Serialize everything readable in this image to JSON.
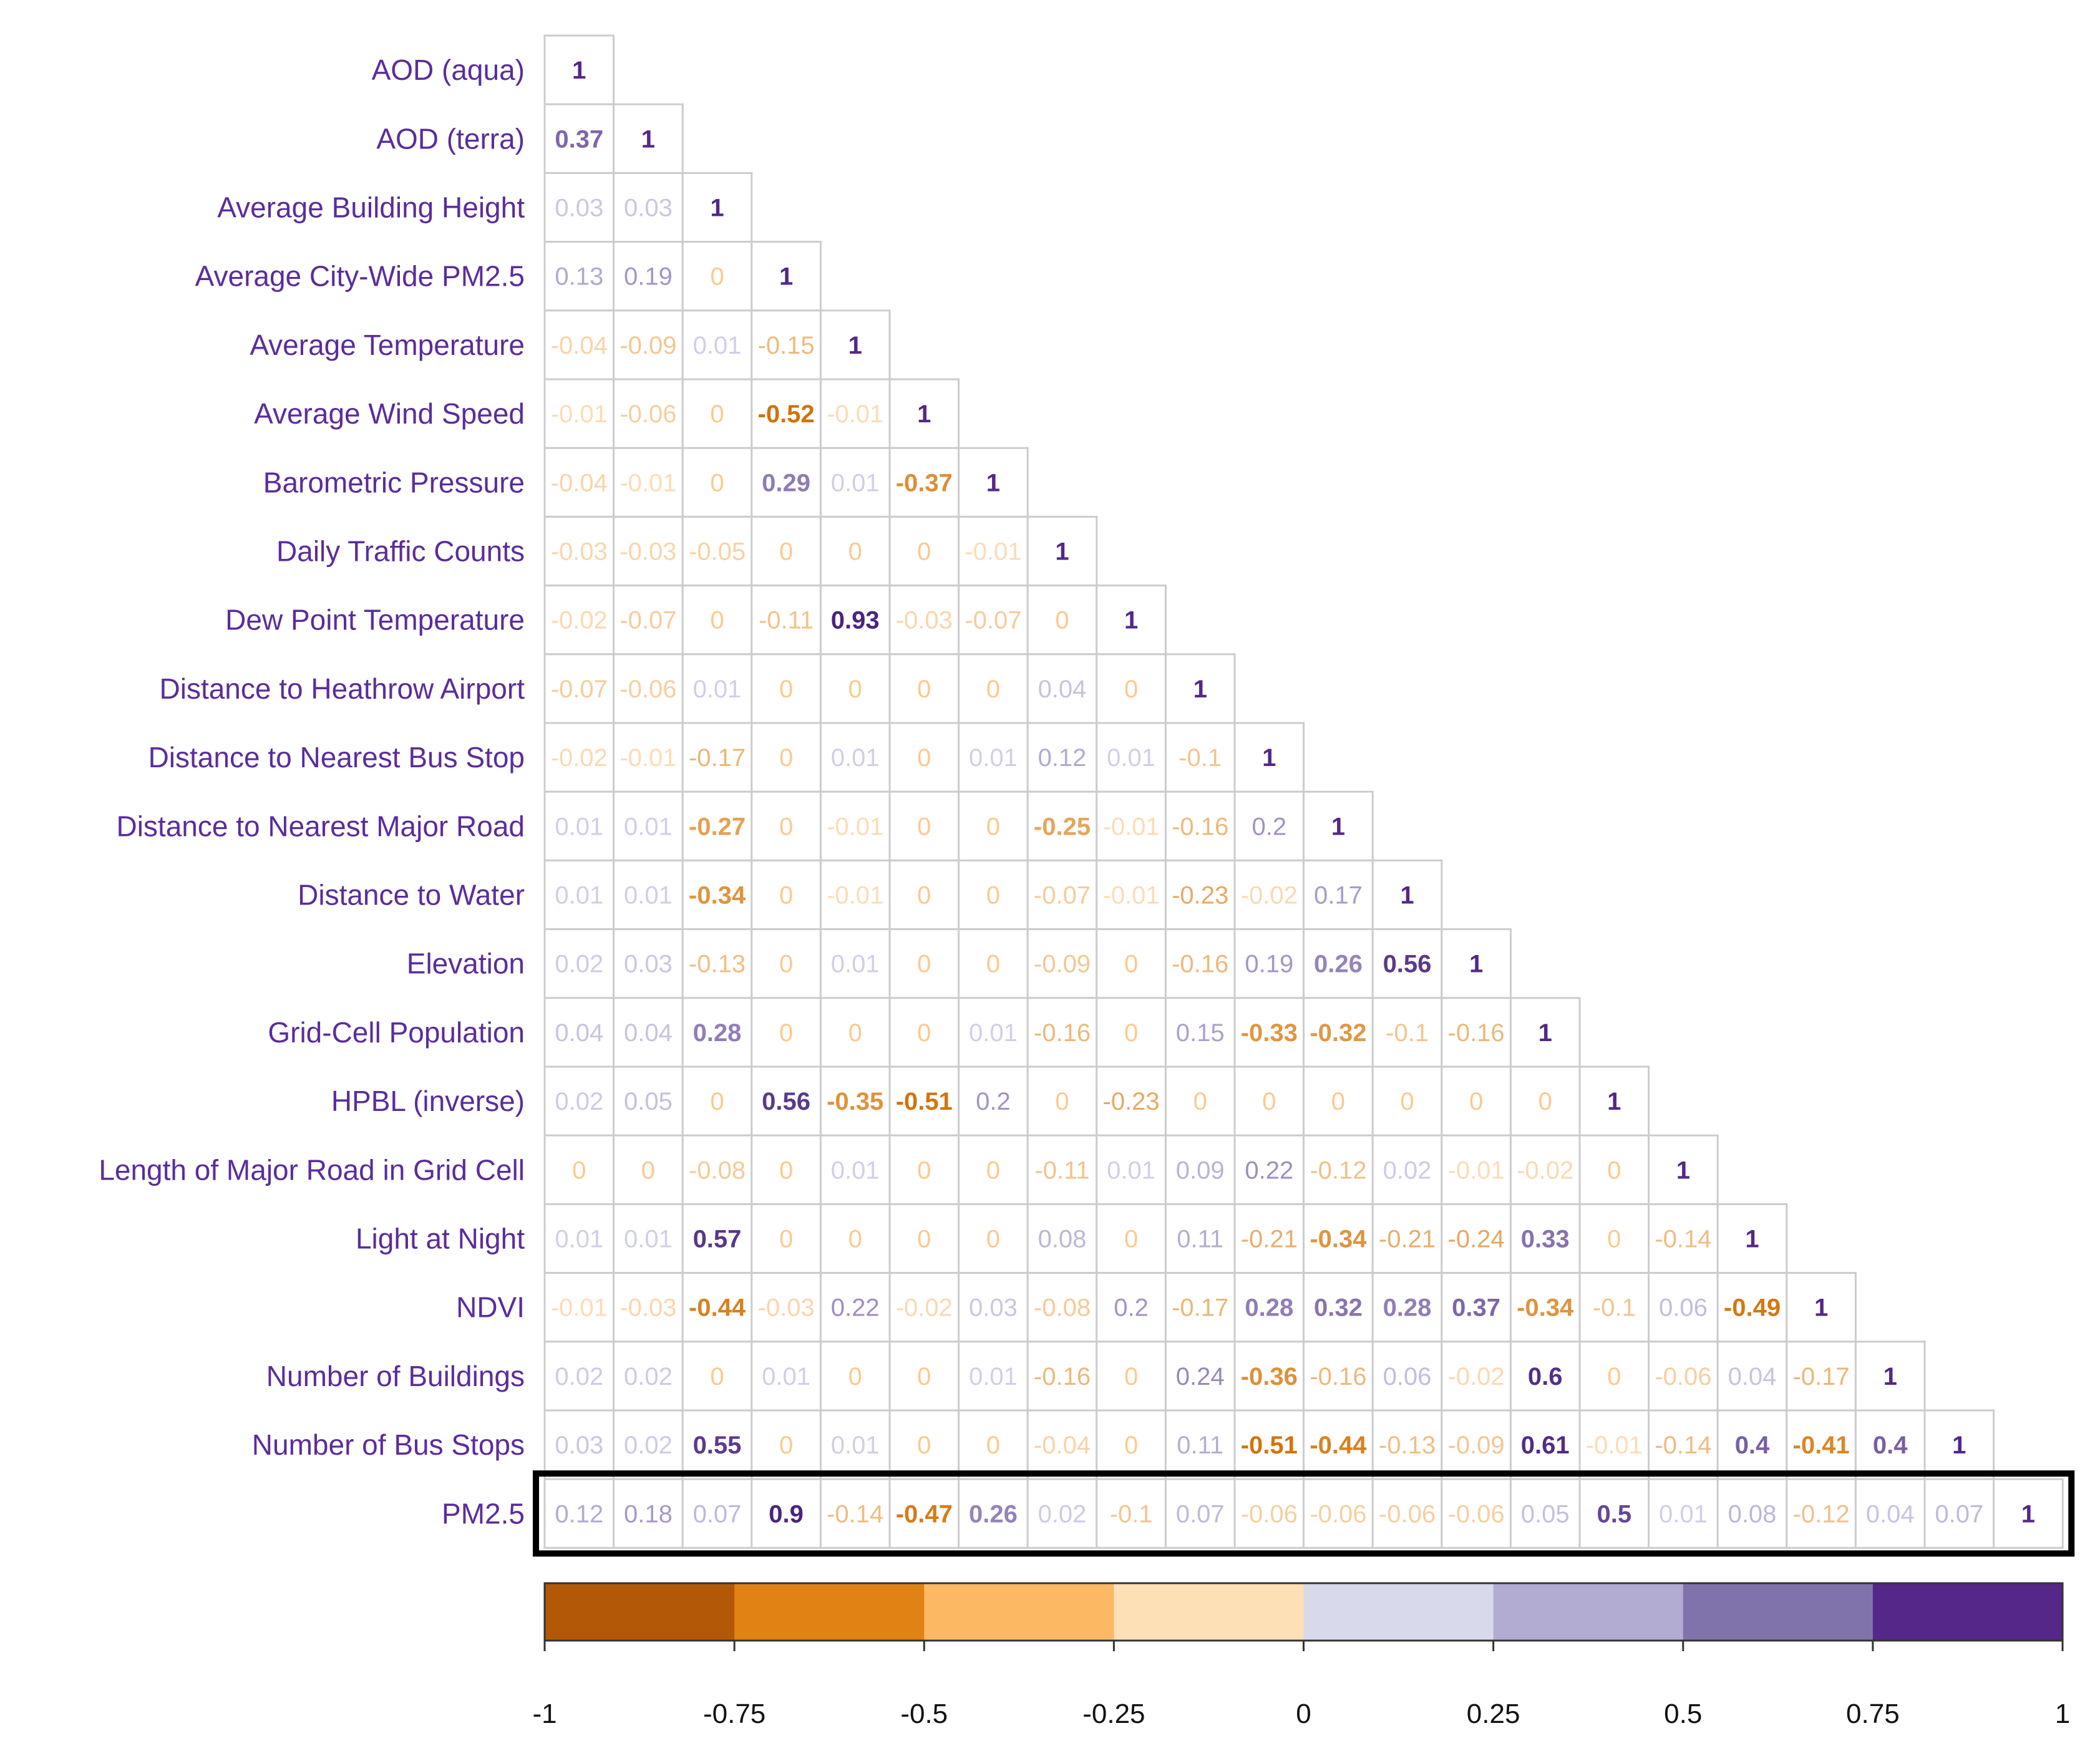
{
  "chart_data": {
    "type": "heatmap",
    "subtype": "lower-triangular correlation matrix",
    "variables": [
      "AOD (aqua)",
      "AOD (terra)",
      "Average Building Height",
      "Average City-Wide PM2.5",
      "Average Temperature",
      "Average Wind Speed",
      "Barometric Pressure",
      "Daily Traffic Counts",
      "Dew Point Temperature",
      "Distance to Heathrow Airport",
      "Distance to Nearest Bus Stop",
      "Distance to Nearest Major Road",
      "Distance to Water",
      "Elevation",
      "Grid-Cell Population",
      "HPBL (inverse)",
      "Length of Major Road in Grid Cell",
      "Light at Night",
      "NDVI",
      "Number of Buildings",
      "Number of Bus Stops",
      "PM2.5"
    ],
    "matrix": [
      [
        "1"
      ],
      [
        "0.37",
        "1"
      ],
      [
        "0.03",
        "0.03",
        "1"
      ],
      [
        "0.13",
        "0.19",
        "0",
        "1"
      ],
      [
        "-0.04",
        "-0.09",
        "0.01",
        "-0.15",
        "1"
      ],
      [
        "-0.01",
        "-0.06",
        "0",
        "-0.52",
        "-0.01",
        "1"
      ],
      [
        "-0.04",
        "-0.01",
        "0",
        "0.29",
        "0.01",
        "-0.37",
        "1"
      ],
      [
        "-0.03",
        "-0.03",
        "-0.05",
        "0",
        "0",
        "0",
        "-0.01",
        "1"
      ],
      [
        "-0.02",
        "-0.07",
        "0",
        "-0.11",
        "0.93",
        "-0.03",
        "-0.07",
        "0",
        "1"
      ],
      [
        "-0.07",
        "-0.06",
        "0.01",
        "0",
        "0",
        "0",
        "0",
        "0.04",
        "0",
        "1"
      ],
      [
        "-0.02",
        "-0.01",
        "-0.17",
        "0",
        "0.01",
        "0",
        "0.01",
        "0.12",
        "0.01",
        "-0.1",
        "1"
      ],
      [
        "0.01",
        "0.01",
        "-0.27",
        "0",
        "-0.01",
        "0",
        "0",
        "-0.25",
        "-0.01",
        "-0.16",
        "0.2",
        "1"
      ],
      [
        "0.01",
        "0.01",
        "-0.34",
        "0",
        "-0.01",
        "0",
        "0",
        "-0.07",
        "-0.01",
        "-0.23",
        "-0.02",
        "0.17",
        "1"
      ],
      [
        "0.02",
        "0.03",
        "-0.13",
        "0",
        "0.01",
        "0",
        "0",
        "-0.09",
        "0",
        "-0.16",
        "0.19",
        "0.26",
        "0.56",
        "1"
      ],
      [
        "0.04",
        "0.04",
        "0.28",
        "0",
        "0",
        "0",
        "0.01",
        "-0.16",
        "0",
        "0.15",
        "-0.33",
        "-0.32",
        "-0.1",
        "-0.16",
        "1"
      ],
      [
        "0.02",
        "0.05",
        "0",
        "0.56",
        "-0.35",
        "-0.51",
        "0.2",
        "0",
        "-0.23",
        "0",
        "0",
        "0",
        "0",
        "0",
        "0",
        "1"
      ],
      [
        "0",
        "0",
        "-0.08",
        "0",
        "0.01",
        "0",
        "0",
        "-0.11",
        "0.01",
        "0.09",
        "0.22",
        "-0.12",
        "0.02",
        "-0.01",
        "-0.02",
        "0",
        "1"
      ],
      [
        "0.01",
        "0.01",
        "0.57",
        "0",
        "0",
        "0",
        "0",
        "0.08",
        "0",
        "0.11",
        "-0.21",
        "-0.34",
        "-0.21",
        "-0.24",
        "0.33",
        "0",
        "-0.14",
        "1"
      ],
      [
        "-0.01",
        "-0.03",
        "-0.44",
        "-0.03",
        "0.22",
        "-0.02",
        "0.03",
        "-0.08",
        "0.2",
        "-0.17",
        "0.28",
        "0.32",
        "0.28",
        "0.37",
        "-0.34",
        "-0.1",
        "0.06",
        "-0.49",
        "1"
      ],
      [
        "0.02",
        "0.02",
        "0",
        "0.01",
        "0",
        "0",
        "0.01",
        "-0.16",
        "0",
        "0.24",
        "-0.36",
        "-0.16",
        "0.06",
        "-0.02",
        "0.6",
        "0",
        "-0.06",
        "0.04",
        "-0.17",
        "1"
      ],
      [
        "0.03",
        "0.02",
        "0.55",
        "0",
        "0.01",
        "0",
        "0",
        "-0.04",
        "0",
        "0.11",
        "-0.51",
        "-0.44",
        "-0.13",
        "-0.09",
        "0.61",
        "-0.01",
        "-0.14",
        "0.4",
        "-0.41",
        "0.4",
        "1"
      ],
      [
        "0.12",
        "0.18",
        "0.07",
        "0.9",
        "-0.14",
        "-0.47",
        "0.26",
        "0.02",
        "-0.1",
        "0.07",
        "-0.06",
        "-0.06",
        "-0.06",
        "-0.06",
        "0.05",
        "0.5",
        "0.01",
        "0.08",
        "-0.12",
        "0.04",
        "0.07",
        "1"
      ]
    ],
    "highlighted_row": "PM2.5",
    "colorbar": {
      "range": [
        -1,
        1
      ],
      "tick_labels": [
        "-1",
        "-0.75",
        "-0.5",
        "-0.25",
        "0",
        "0.25",
        "0.5",
        "0.75",
        "1"
      ],
      "bin_colors": [
        "#b35806",
        "#e08214",
        "#fdb863",
        "#fee0b6",
        "#d8daeb",
        "#b2abd2",
        "#8073ac",
        "#542788"
      ]
    }
  }
}
